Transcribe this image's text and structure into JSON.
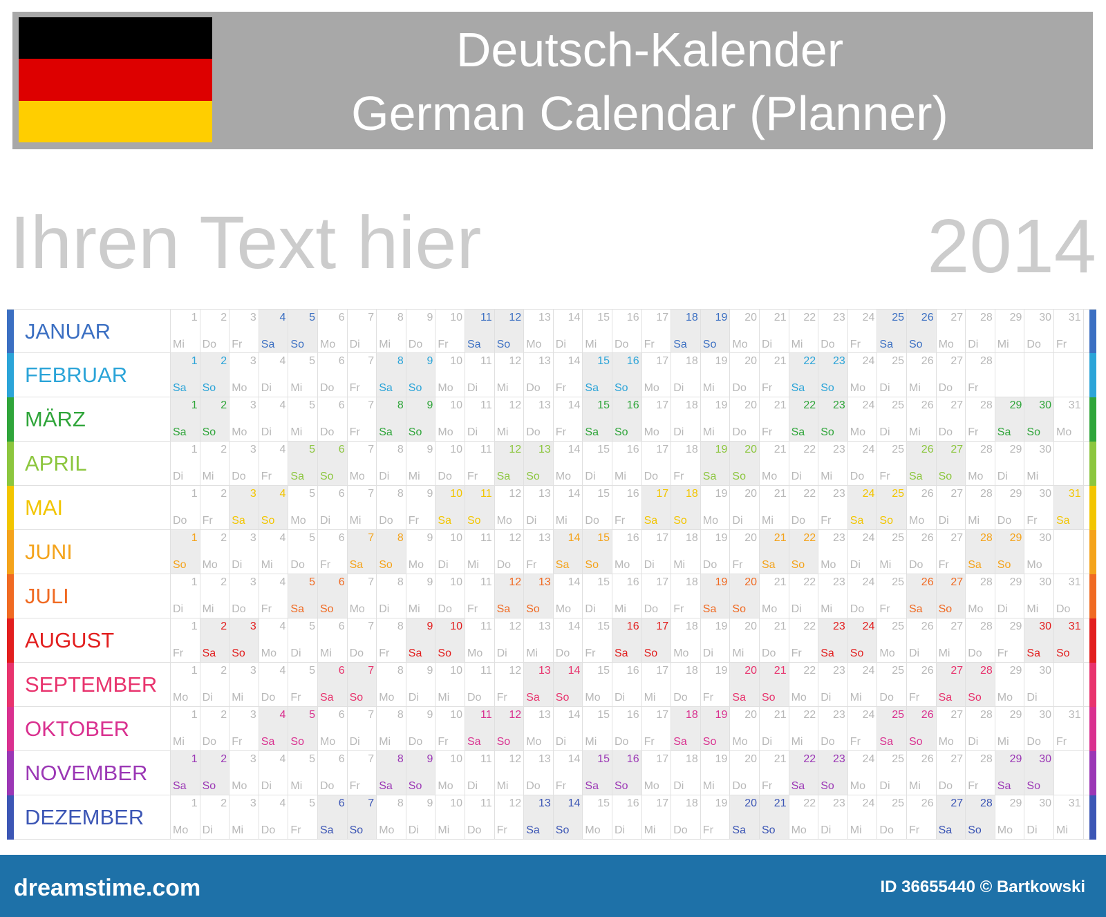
{
  "header": {
    "title_line1": "Deutsch-Kalender",
    "title_line2": "German Calendar (Planner)"
  },
  "flag_colors": [
    "#000000",
    "#dd0000",
    "#ffce00"
  ],
  "headline": "Ihren Text hier",
  "year": "2014",
  "weekday_abbr": [
    "Mo",
    "Di",
    "Mi",
    "Do",
    "Fr",
    "Sa",
    "So"
  ],
  "months": [
    {
      "name": "JANUAR",
      "color": "#3b6fc2",
      "days": 31,
      "start": 2
    },
    {
      "name": "FEBRUAR",
      "color": "#2ba4d8",
      "days": 28,
      "start": 5
    },
    {
      "name": "MÄRZ",
      "color": "#2fa53a",
      "days": 31,
      "start": 5
    },
    {
      "name": "APRIL",
      "color": "#8cc63e",
      "days": 30,
      "start": 1
    },
    {
      "name": "MAI",
      "color": "#f2c500",
      "days": 31,
      "start": 3
    },
    {
      "name": "JUNI",
      "color": "#f4a31b",
      "days": 30,
      "start": 6
    },
    {
      "name": "JULI",
      "color": "#f06a22",
      "days": 31,
      "start": 1
    },
    {
      "name": "AUGUST",
      "color": "#e21e1e",
      "days": 31,
      "start": 4
    },
    {
      "name": "SEPTEMBER",
      "color": "#e8336d",
      "days": 30,
      "start": 0
    },
    {
      "name": "OKTOBER",
      "color": "#d9308f",
      "days": 31,
      "start": 2
    },
    {
      "name": "NOVEMBER",
      "color": "#9b37b5",
      "days": 30,
      "start": 5
    },
    {
      "name": "DEZEMBER",
      "color": "#3c56b5",
      "days": 31,
      "start": 0
    }
  ],
  "footer": {
    "site": "dreamstime.com",
    "id_text": "ID 36655440 © Bartkowski"
  }
}
